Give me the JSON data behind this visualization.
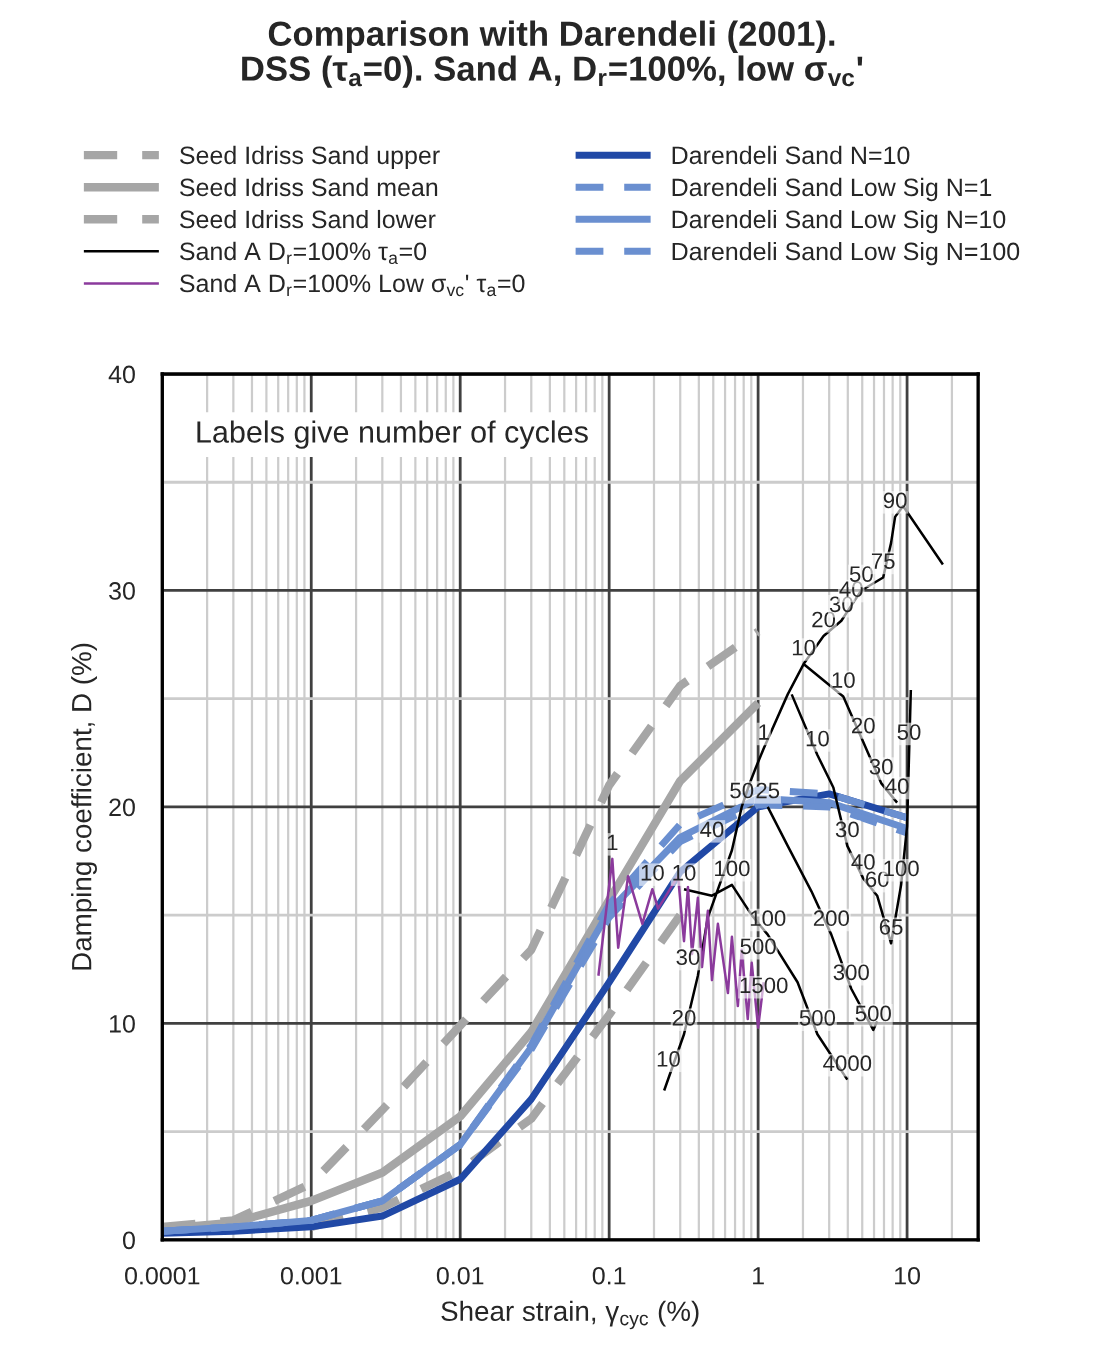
{
  "chart_data": {
    "type": "line",
    "title": "Comparison with Darendeli (2001).\nDSS (τ$_{a}$=0). Sand A, D$_{r}$=100%, low σ$_{vc}$'",
    "xlabel": "Shear strain, γ$_{cyc}$ (%)",
    "ylabel": "Damping coefficient, D (%)",
    "log": "x",
    "xlim": [
      0.0001,
      30
    ],
    "xticks": [
      0.0001,
      0.001,
      0.01,
      0.1,
      1,
      10
    ],
    "ylim": [
      0,
      40
    ],
    "yticks": [
      0,
      {
        "value": 5,
        "label": null
      },
      10,
      {
        "value": 15,
        "label": null
      },
      20,
      {
        "value": 25,
        "label": null
      },
      30,
      {
        "value": 35,
        "label": null
      },
      40
    ],
    "grid": true,
    "legend": "top",
    "series": [
      {
        "name": "Seed Idriss Sand upper",
        "color": "#a6a6a6",
        "line_style": "dashed",
        "x": [
          0.0001,
          0.0003,
          0.001,
          0.003,
          0.01,
          0.03,
          0.1,
          0.3,
          1
        ],
        "values": [
          0.6,
          0.9,
          2.6,
          6.0,
          9.9,
          13.4,
          21.0,
          25.6,
          28.1
        ]
      },
      {
        "name": "Seed Idriss Sand mean",
        "color": "#a6a6a6",
        "line_style": "solid",
        "x": [
          0.0001,
          0.0003,
          0.001,
          0.003,
          0.01,
          0.03,
          0.1,
          0.3,
          1
        ],
        "values": [
          0.5,
          0.8,
          1.8,
          3.1,
          5.7,
          9.6,
          15.7,
          21.2,
          24.8
        ]
      },
      {
        "name": "Seed Idriss Sand lower",
        "color": "#a6a6a6",
        "line_style": "dashed",
        "x": [
          0.001,
          0.003,
          0.01,
          0.03,
          0.1,
          0.3
        ],
        "values": [
          0.6,
          1.5,
          3.2,
          5.6,
          10.4,
          15.0
        ]
      },
      {
        "name": "Sand A D$_{r}$=100% τ$_{a}$=0",
        "color": "#000000",
        "line_style": "solid",
        "x": [
          0.234,
          0.318,
          0.394,
          0.46,
          0.667,
          0.776,
          0.879,
          0.963,
          1.09,
          1.58,
          2.02,
          2.75,
          3.62,
          4.22,
          4.93,
          6.91,
          7.81,
          8.31,
          9.4,
          17.4,
          null,
          2.02,
          3.73,
          5.08,
          6.7,
          8.57,
          null,
          1.68,
          2.5,
          3.2,
          3.97,
          5.08,
          6.3,
          7.81,
          9.12,
          10.0,
          10.6,
          null,
          1.16,
          1.58,
          2.28,
          3.1,
          4.22,
          5.93,
          6.3,
          null,
          0.318,
          0.49,
          0.667,
          0.906,
          1.16,
          1.84,
          2.5,
          3.97
        ],
        "values": [
          6.9,
          9.5,
          12.2,
          14.9,
          18.0,
          20.0,
          21.1,
          21.8,
          22.7,
          25.2,
          26.6,
          27.9,
          28.6,
          29.3,
          30.0,
          30.6,
          32.2,
          33.4,
          33.9,
          31.2,
          null,
          26.6,
          25.1,
          23.0,
          21.1,
          20.2,
          null,
          25.2,
          22.4,
          20.9,
          18.2,
          16.7,
          15.9,
          13.7,
          16.4,
          19.1,
          25.4,
          null,
          20.0,
          18.2,
          16.1,
          14.1,
          11.6,
          9.7,
          10.1,
          null,
          16.2,
          15.9,
          16.4,
          15.0,
          14.1,
          11.9,
          9.5,
          7.4
        ]
      },
      {
        "name": "Sand A D$_{r}$=100% Low σ$_{vc}$' τ$_{a}$=0",
        "color": "#8b3a9c",
        "line_style": "solid",
        "x": [
          0.0847,
          0.105,
          0.115,
          0.134,
          0.167,
          0.195,
          0.213,
          0.29,
          0.318,
          0.338,
          0.36,
          0.394,
          0.42,
          0.46,
          0.49,
          0.537,
          0.627,
          0.667,
          0.731,
          0.776,
          0.852,
          0.906,
          1.0,
          1.09
        ],
        "values": [
          12.2,
          17.6,
          13.5,
          16.8,
          14.6,
          16.2,
          15.3,
          16.8,
          13.8,
          16.3,
          13.2,
          15.8,
          12.6,
          15.2,
          12.0,
          14.6,
          11.4,
          14.0,
          10.8,
          13.4,
          10.2,
          12.8,
          9.8,
          11.9
        ]
      },
      {
        "name": "Darendeli Sand N=10",
        "color": "#2149a6",
        "line_style": "solid",
        "x": [
          0.0001,
          0.0003,
          0.001,
          0.003,
          0.01,
          0.03,
          0.1,
          0.3,
          1,
          3,
          10
        ],
        "values": [
          0.3,
          0.4,
          0.6,
          1.1,
          2.8,
          6.5,
          11.9,
          17.0,
          20.0,
          20.6,
          19.5
        ]
      },
      {
        "name": "Darendeli Sand Low Sig N=1",
        "color": "#6a8fd0",
        "line_style": "dashed",
        "x": [
          0.0001,
          0.0003,
          0.001,
          0.003,
          0.01,
          0.03,
          0.1,
          0.3,
          1,
          3,
          10
        ],
        "values": [
          0.4,
          0.6,
          0.9,
          1.8,
          4.4,
          9.0,
          15.5,
          19.2,
          20.8,
          20.6,
          19.5
        ]
      },
      {
        "name": "Darendeli Sand Low Sig N=10",
        "color": "#6a8fd0",
        "line_style": "solid",
        "x": [
          0.0001,
          0.0003,
          0.001,
          0.003,
          0.01,
          0.03,
          0.1,
          0.3,
          1,
          3,
          10
        ],
        "values": [
          0.4,
          0.6,
          0.9,
          1.8,
          4.4,
          8.9,
          15.2,
          18.6,
          20.4,
          20.2,
          19.0
        ]
      },
      {
        "name": "Darendeli Sand Low Sig N=100",
        "color": "#6a8fd0",
        "line_style": "dashed",
        "x": [
          0.0001,
          0.0003,
          0.001,
          0.003,
          0.01,
          0.03,
          0.1,
          0.3,
          1,
          3,
          10
        ],
        "values": [
          0.4,
          0.6,
          0.9,
          1.8,
          4.4,
          8.8,
          14.9,
          18.4,
          20.1,
          20.0,
          18.8
        ]
      }
    ],
    "annotations": [
      "Labels give number of cycles",
      {
        "text": "10",
        "x": 0.25,
        "y": 7.6
      },
      {
        "text": "20",
        "x": 0.318,
        "y": 9.5
      },
      {
        "text": "30",
        "x": 0.338,
        "y": 12.3
      },
      {
        "text": "40",
        "x": 0.49,
        "y": 18.2
      },
      {
        "text": "50",
        "x": 0.776,
        "y": 20.0
      },
      {
        "text": "1",
        "x": 1.09,
        "y": 22.7
      },
      {
        "text": "10",
        "x": 2.02,
        "y": 26.6
      },
      {
        "text": "20",
        "x": 2.75,
        "y": 27.9
      },
      {
        "text": "30",
        "x": 3.62,
        "y": 28.6
      },
      {
        "text": "40",
        "x": 4.22,
        "y": 29.3
      },
      {
        "text": "50",
        "x": 4.93,
        "y": 30.0
      },
      {
        "text": "75",
        "x": 6.91,
        "y": 30.6
      },
      {
        "text": "90",
        "x": 8.31,
        "y": 33.4
      },
      {
        "text": "10",
        "x": 3.73,
        "y": 25.1
      },
      {
        "text": "20",
        "x": 5.08,
        "y": 23.0
      },
      {
        "text": "30",
        "x": 6.7,
        "y": 21.1
      },
      {
        "text": "40",
        "x": 8.57,
        "y": 20.2
      },
      {
        "text": "50",
        "x": 10.3,
        "y": 22.7
      },
      {
        "text": "10",
        "x": 2.5,
        "y": 22.4
      },
      {
        "text": "30",
        "x": 3.97,
        "y": 18.2
      },
      {
        "text": "40",
        "x": 5.08,
        "y": 16.7
      },
      {
        "text": "60",
        "x": 6.3,
        "y": 15.9
      },
      {
        "text": "65",
        "x": 7.81,
        "y": 13.7
      },
      {
        "text": "100",
        "x": 9.12,
        "y": 16.4
      },
      {
        "text": "25",
        "x": 1.16,
        "y": 20.0
      },
      {
        "text": "200",
        "x": 3.1,
        "y": 14.1
      },
      {
        "text": "300",
        "x": 4.22,
        "y": 11.6
      },
      {
        "text": "500",
        "x": 5.93,
        "y": 9.7
      },
      {
        "text": "10",
        "x": 0.318,
        "y": 16.2
      },
      {
        "text": "100",
        "x": 0.667,
        "y": 16.4
      },
      {
        "text": "100",
        "x": 1.16,
        "y": 14.1
      },
      {
        "text": "500",
        "x": 2.5,
        "y": 9.5
      },
      {
        "text": "4000",
        "x": 3.97,
        "y": 7.4
      },
      {
        "text": "1",
        "x": 0.105,
        "y": 17.6
      },
      {
        "text": "10",
        "x": 0.195,
        "y": 16.2
      },
      {
        "text": "500",
        "x": 1.0,
        "y": 12.8
      },
      {
        "text": "1500",
        "x": 1.09,
        "y": 11.0
      }
    ]
  }
}
